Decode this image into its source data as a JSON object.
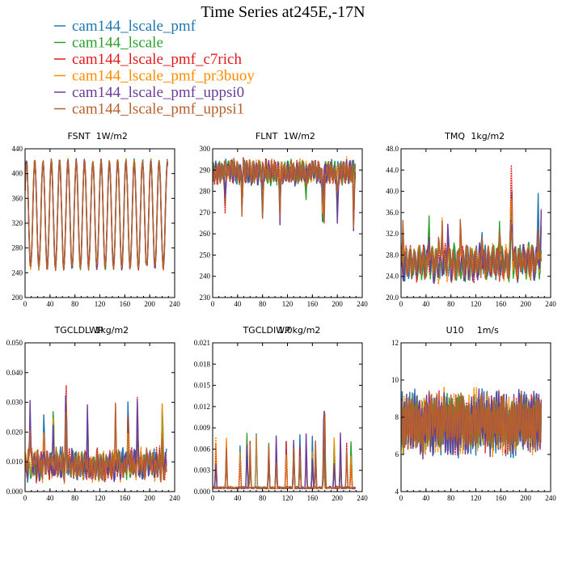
{
  "figure": {
    "title": "Time Series at245E,-17N"
  },
  "legend": [
    {
      "name": "cam144_lscale_pmf",
      "color": "#1f77b4"
    },
    {
      "name": "cam144_lscale",
      "color": "#2ca02c"
    },
    {
      "name": "cam144_lscale_pmf_c7rich",
      "color": "#e31a1c"
    },
    {
      "name": "cam144_lscale_pmf_pr3buoy",
      "color": "#ff8c00"
    },
    {
      "name": "cam144_lscale_pmf_uppsi0",
      "color": "#6a3d9a"
    },
    {
      "name": "cam144_lscale_pmf_uppsi1",
      "color": "#b5602e"
    }
  ],
  "chart_data": [
    {
      "type": "line",
      "title_left": "FSNT",
      "title_right": "1W/m2",
      "xlim": [
        0,
        240
      ],
      "ylim": [
        200,
        440
      ],
      "xticks": [
        0,
        40,
        80,
        120,
        160,
        200,
        240
      ],
      "yticks": [
        200,
        240,
        280,
        320,
        360,
        400,
        440
      ],
      "ytick_labels": [
        "200",
        "240",
        "280",
        "320",
        "360",
        "400",
        "440"
      ],
      "n_points": 230,
      "pattern": {
        "kind": "sine",
        "mean": 334,
        "amp": 86,
        "period": 13.3,
        "phase": 0.5,
        "noise": 5,
        "spikes": [],
        "spike_amp": 0,
        "floor": 238,
        "ceil": 432
      }
    },
    {
      "type": "line",
      "title_left": "FLNT",
      "title_right": "1W/m2",
      "xlim": [
        0,
        240
      ],
      "ylim": [
        230,
        300
      ],
      "xticks": [
        0,
        40,
        80,
        120,
        160,
        200,
        240
      ],
      "yticks": [
        230,
        240,
        250,
        260,
        270,
        280,
        290,
        300
      ],
      "ytick_labels": [
        "230",
        "240",
        "250",
        "260",
        "270",
        "280",
        "290",
        "300"
      ],
      "n_points": 230,
      "pattern": {
        "kind": "noise_down",
        "mean": 289,
        "amp": 4,
        "period": 5,
        "phase": 0,
        "noise": 4,
        "spikes": [
          20,
          47,
          80,
          108,
          150,
          176,
          177,
          178,
          179,
          200,
          226
        ],
        "spike_amp": -22,
        "floor": 232,
        "ceil": 297
      }
    },
    {
      "type": "line",
      "title_left": "TMQ",
      "title_right": "1kg/m2",
      "xlim": [
        0,
        240
      ],
      "ylim": [
        20,
        48
      ],
      "xticks": [
        0,
        40,
        80,
        120,
        160,
        200,
        240
      ],
      "yticks": [
        20,
        24,
        28,
        32,
        36,
        40,
        44,
        48
      ],
      "ytick_labels": [
        "20.0",
        "24.0",
        "28.0",
        "32.0",
        "36.0",
        "40.0",
        "44.0",
        "48.0"
      ],
      "n_points": 226,
      "pattern": {
        "kind": "noise_up",
        "mean": 26.5,
        "amp": 2.5,
        "period": 7,
        "phase": 0,
        "noise": 2,
        "spikes": [
          3,
          45,
          60,
          66,
          75,
          95,
          130,
          158,
          176,
          177,
          178,
          220,
          225
        ],
        "spike_amp": 9,
        "floor": 20.5,
        "ceil": 47.5
      }
    },
    {
      "type": "line",
      "title_left": "TGCLDLWP",
      "title_right": "1kg/m2",
      "xlim": [
        0,
        240
      ],
      "ylim": [
        0,
        0.05
      ],
      "xticks": [
        0,
        40,
        80,
        120,
        160,
        200,
        240
      ],
      "yticks": [
        0,
        0.01,
        0.02,
        0.03,
        0.04,
        0.05
      ],
      "ytick_labels": [
        "0.000",
        "0.010",
        "0.020",
        "0.030",
        "0.040",
        "0.050"
      ],
      "n_points": 228,
      "pattern": {
        "kind": "noise_up",
        "mean": 0.009,
        "amp": 0.003,
        "period": 5,
        "phase": 0,
        "noise": 0.005,
        "spikes": [
          8,
          30,
          45,
          65,
          66,
          100,
          145,
          165,
          180,
          220
        ],
        "spike_amp": 0.02,
        "floor": 0.0015,
        "ceil": 0.046
      }
    },
    {
      "type": "line",
      "title_left": "TGCLDIWP",
      "title_right": "1.0kg/m2",
      "xlim": [
        0,
        240
      ],
      "ylim": [
        0,
        0.021
      ],
      "xticks": [
        0,
        40,
        80,
        120,
        160,
        200,
        240
      ],
      "yticks": [
        0,
        0.003,
        0.006,
        0.009,
        0.012,
        0.015,
        0.018,
        0.021
      ],
      "ytick_labels": [
        "0.000",
        "0.003",
        "0.006",
        "0.009",
        "0.012",
        "0.015",
        "0.018",
        "0.021"
      ],
      "n_points": 230,
      "pattern": {
        "kind": "spiky",
        "mean": 0.0004,
        "amp": 0.0002,
        "period": 4,
        "phase": 0,
        "noise": 0.0004,
        "spikes": [
          5,
          22,
          44,
          55,
          60,
          70,
          90,
          102,
          118,
          130,
          140,
          150,
          160,
          165,
          178,
          179,
          180,
          195,
          205,
          215,
          222
        ],
        "spike_amp": 0.007,
        "floor": 0,
        "ceil": 0.0205
      }
    },
    {
      "type": "line",
      "title_left": "U10",
      "title_right": "1m/s",
      "xlim": [
        0,
        240
      ],
      "ylim": [
        4,
        12
      ],
      "xticks": [
        0,
        40,
        80,
        120,
        160,
        200,
        240
      ],
      "yticks": [
        4,
        6,
        8,
        10,
        12
      ],
      "ytick_labels": [
        "4",
        "6",
        "8",
        "10",
        "12"
      ],
      "n_points": 226,
      "pattern": {
        "kind": "noise",
        "mean": 7.7,
        "amp": 1.3,
        "period": 4,
        "phase": 0,
        "noise": 1.0,
        "spikes": [],
        "spike_amp": 0,
        "floor": 4.2,
        "ceil": 11.1
      }
    }
  ]
}
